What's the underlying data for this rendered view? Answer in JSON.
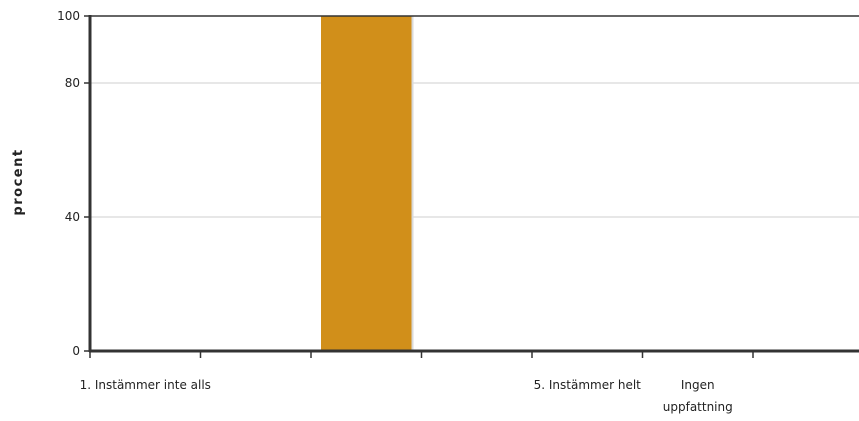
{
  "chart_data": {
    "type": "bar",
    "categories": [
      "1. Instämmer inte alls",
      "",
      "",
      "",
      "5. Instämmer helt",
      "Ingen uppfattning"
    ],
    "values": [
      0,
      0,
      100,
      0,
      0,
      0
    ],
    "ylabel": "procent",
    "xlabel": "",
    "ylim": [
      0,
      100
    ],
    "yticks": [
      0,
      40,
      80,
      100
    ],
    "bar_color": "#d18f1a",
    "grid": true
  }
}
